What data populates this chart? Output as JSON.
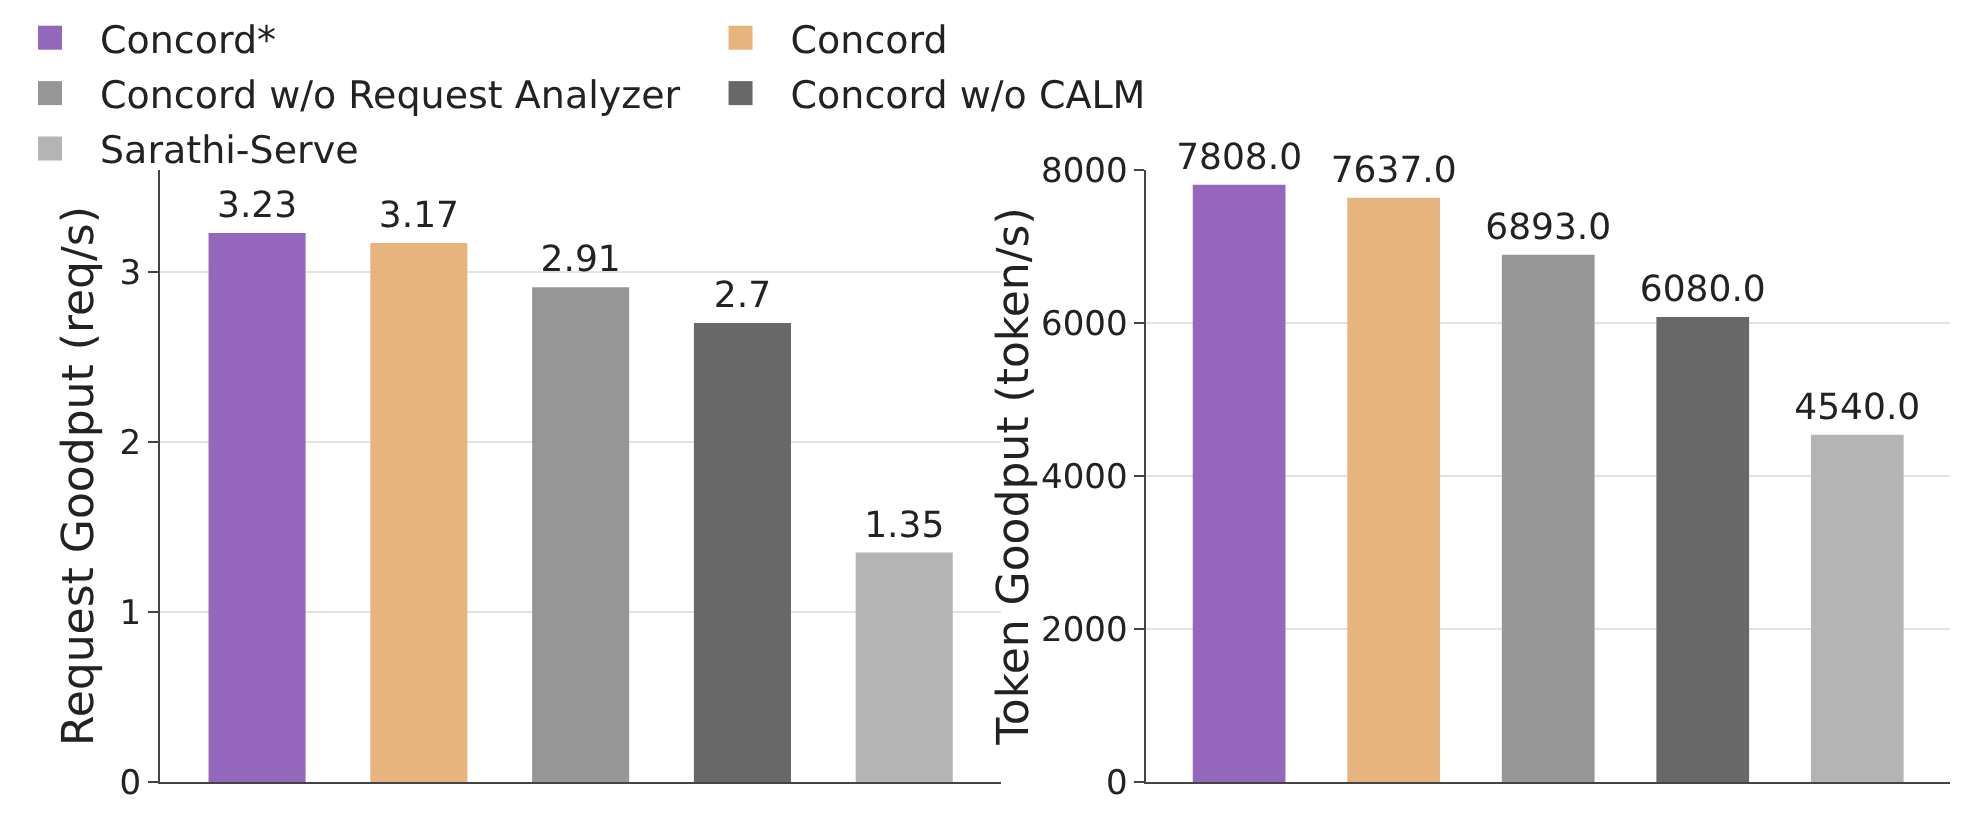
{
  "chart_data": [
    {
      "type": "bar",
      "ylabel": "Request Goodput (req/s)",
      "categories": [
        null,
        null,
        null,
        null,
        null
      ],
      "series": [
        {
          "name": "Concord*",
          "color": "#9467bd",
          "values": [
            3.23,
            null,
            null,
            null,
            null
          ]
        },
        {
          "name": "Concord",
          "color": "#e8b47e",
          "values": [
            null,
            3.17,
            null,
            null,
            null
          ]
        },
        {
          "name": "Concord w/o Request Analyzer",
          "color": "#969696",
          "values": [
            null,
            null,
            2.91,
            null,
            null
          ]
        },
        {
          "name": "Concord w/o CALM",
          "color": "#686868",
          "values": [
            null,
            null,
            null,
            2.7,
            null
          ]
        },
        {
          "name": "Sarathi-Serve",
          "color": "#b4b4b4",
          "values": [
            null,
            null,
            null,
            null,
            1.35
          ]
        }
      ],
      "ylim": [
        0,
        3.6
      ],
      "yticks": [
        0,
        1,
        2,
        3
      ],
      "grid": "y",
      "legend": "top",
      "data_labels": true
    },
    {
      "type": "bar",
      "ylabel": "Token Goodput (token/s)",
      "categories": [
        null,
        null,
        null,
        null,
        null
      ],
      "values": [
        7808,
        7637,
        6893,
        6080,
        4540
      ],
      "value_labels": [
        "7808.0",
        "7637.0",
        "6893.0",
        "6080.0",
        "4540.0"
      ],
      "colors": [
        "#9467bd",
        "#e8b47e",
        "#969696",
        "#686868",
        "#b4b4b4"
      ],
      "ylim": [
        0,
        8000
      ],
      "yticks": [
        0,
        2000,
        4000,
        6000,
        8000
      ],
      "grid": "y"
    }
  ]
}
